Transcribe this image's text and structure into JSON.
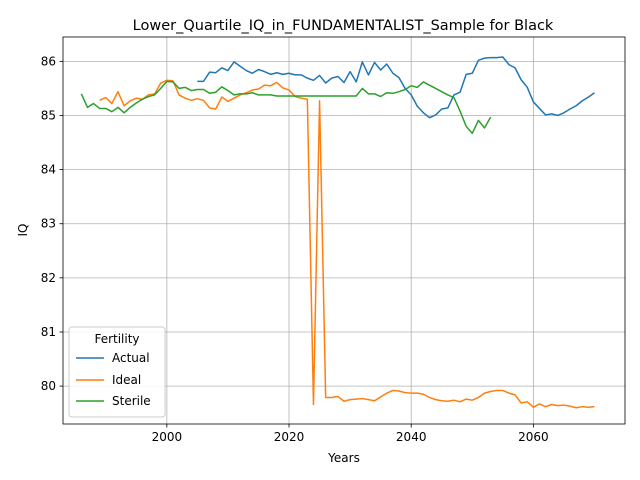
{
  "chart_data": {
    "type": "line",
    "title": "Lower_Quartile_IQ_in_FUNDAMENTALIST_Sample for Black",
    "xlabel": "Years",
    "ylabel": "IQ",
    "xlim": [
      1983,
      2075
    ],
    "ylim": [
      79.3,
      86.45
    ],
    "xticks": [
      2000,
      2020,
      2040,
      2060
    ],
    "yticks": [
      80,
      81,
      82,
      83,
      84,
      85,
      86
    ],
    "grid": true,
    "legend": {
      "title": "Fertility",
      "placement": "lower-left"
    },
    "series": [
      {
        "name": "Actual",
        "color": "#1f77b4",
        "x": [
          2005,
          2006,
          2007,
          2008,
          2009,
          2010,
          2011,
          2012,
          2013,
          2014,
          2015,
          2016,
          2017,
          2018,
          2019,
          2020,
          2021,
          2022,
          2023,
          2024,
          2025,
          2026,
          2027,
          2028,
          2029,
          2030,
          2031,
          2032,
          2033,
          2034,
          2035,
          2036,
          2037,
          2038,
          2039,
          2040,
          2041,
          2042,
          2043,
          2044,
          2045,
          2046,
          2047,
          2048,
          2049,
          2050,
          2051,
          2052,
          2053,
          2054,
          2055,
          2056,
          2057,
          2058,
          2059,
          2060,
          2061,
          2062,
          2063,
          2064,
          2065,
          2066,
          2067,
          2068,
          2069,
          2070
        ],
        "y": [
          85.63,
          85.63,
          85.8,
          85.79,
          85.88,
          85.83,
          85.99,
          85.91,
          85.83,
          85.78,
          85.85,
          85.81,
          85.76,
          85.79,
          85.76,
          85.78,
          85.75,
          85.75,
          85.69,
          85.65,
          85.74,
          85.6,
          85.69,
          85.72,
          85.61,
          85.81,
          85.62,
          85.99,
          85.75,
          85.98,
          85.84,
          85.95,
          85.78,
          85.7,
          85.5,
          85.38,
          85.17,
          85.05,
          84.96,
          85.01,
          85.12,
          85.14,
          85.38,
          85.43,
          85.76,
          85.78,
          86.02,
          86.06,
          86.07,
          86.07,
          86.08,
          85.94,
          85.88,
          85.66,
          85.52,
          85.25,
          85.13,
          85.01,
          85.03,
          85.0,
          85.05,
          85.12,
          85.18,
          85.27,
          85.34,
          85.42
        ]
      },
      {
        "name": "Ideal",
        "color": "#ff7f0e",
        "x": [
          1989,
          1990,
          1991,
          1992,
          1993,
          1994,
          1995,
          1996,
          1997,
          1998,
          1999,
          2000,
          2001,
          2002,
          2003,
          2004,
          2005,
          2006,
          2007,
          2008,
          2009,
          2010,
          2011,
          2012,
          2013,
          2014,
          2015,
          2016,
          2017,
          2018,
          2019,
          2020,
          2021,
          2022,
          2023,
          2024,
          2025,
          2026,
          2027,
          2028,
          2029,
          2030,
          2031,
          2032,
          2033,
          2034,
          2035,
          2036,
          2037,
          2038,
          2039,
          2040,
          2041,
          2042,
          2043,
          2044,
          2045,
          2046,
          2047,
          2048,
          2049,
          2050,
          2051,
          2052,
          2053,
          2054,
          2055,
          2056,
          2057,
          2058,
          2059,
          2060,
          2061,
          2062,
          2063,
          2064,
          2065,
          2066,
          2067,
          2068,
          2069,
          2070
        ],
        "y": [
          85.28,
          85.33,
          85.22,
          85.44,
          85.18,
          85.27,
          85.32,
          85.3,
          85.38,
          85.4,
          85.6,
          85.65,
          85.64,
          85.38,
          85.32,
          85.28,
          85.31,
          85.28,
          85.14,
          85.12,
          85.34,
          85.26,
          85.32,
          85.38,
          85.42,
          85.47,
          85.49,
          85.56,
          85.55,
          85.61,
          85.51,
          85.47,
          85.35,
          85.32,
          85.3,
          79.66,
          85.27,
          79.79,
          79.79,
          79.81,
          79.72,
          79.75,
          79.76,
          79.77,
          79.75,
          79.73,
          79.8,
          79.87,
          79.92,
          79.91,
          79.88,
          79.87,
          79.87,
          79.85,
          79.79,
          79.75,
          79.73,
          79.72,
          79.74,
          79.71,
          79.76,
          79.74,
          79.79,
          79.87,
          79.9,
          79.92,
          79.92,
          79.87,
          79.84,
          79.69,
          79.71,
          79.61,
          79.67,
          79.62,
          79.66,
          79.64,
          79.65,
          79.63,
          79.6,
          79.62,
          79.61,
          79.62
        ]
      },
      {
        "name": "Sterile",
        "color": "#2ca02c",
        "x": [
          1986,
          1987,
          1988,
          1989,
          1990,
          1991,
          1992,
          1993,
          1994,
          1995,
          1996,
          1997,
          1998,
          1999,
          2000,
          2001,
          2002,
          2003,
          2004,
          2005,
          2006,
          2007,
          2008,
          2009,
          2010,
          2011,
          2012,
          2013,
          2014,
          2015,
          2016,
          2017,
          2018,
          2019,
          2020,
          2021,
          2022,
          2023,
          2024,
          2025,
          2026,
          2027,
          2028,
          2029,
          2030,
          2031,
          2032,
          2033,
          2034,
          2035,
          2036,
          2037,
          2038,
          2039,
          2040,
          2041,
          2042,
          2043,
          2044,
          2045,
          2046,
          2047,
          2048,
          2049,
          2050,
          2051,
          2052,
          2053
        ],
        "y": [
          85.4,
          85.15,
          85.22,
          85.13,
          85.13,
          85.07,
          85.15,
          85.05,
          85.15,
          85.23,
          85.3,
          85.35,
          85.38,
          85.5,
          85.63,
          85.62,
          85.5,
          85.52,
          85.46,
          85.48,
          85.48,
          85.41,
          85.43,
          85.53,
          85.46,
          85.38,
          85.4,
          85.4,
          85.42,
          85.38,
          85.38,
          85.38,
          85.36,
          85.36,
          85.36,
          85.36,
          85.36,
          85.36,
          85.36,
          85.36,
          85.36,
          85.36,
          85.36,
          85.36,
          85.36,
          85.36,
          85.5,
          85.4,
          85.4,
          85.35,
          85.42,
          85.41,
          85.44,
          85.48,
          85.55,
          85.52,
          85.62,
          85.56,
          85.5,
          85.44,
          85.38,
          85.33,
          85.08,
          84.8,
          84.67,
          84.91,
          84.77,
          84.97
        ]
      }
    ]
  }
}
